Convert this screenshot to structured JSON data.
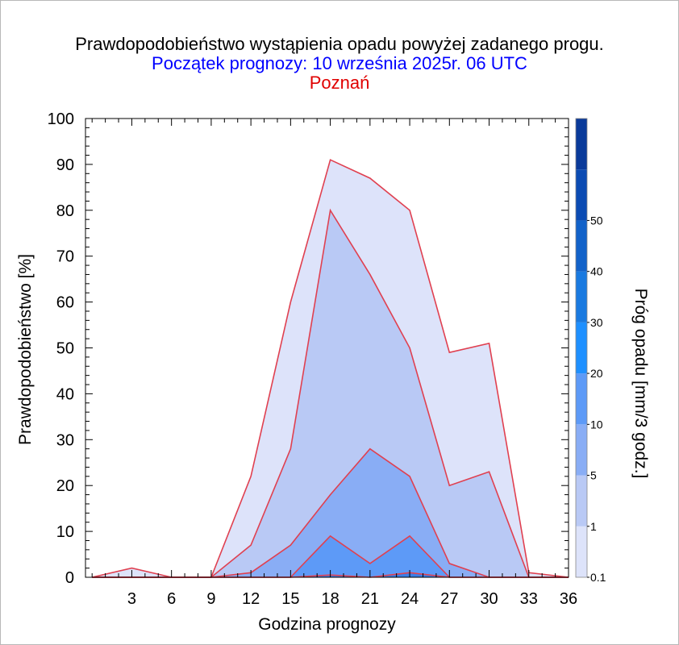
{
  "title": "Prawdopodobieństwo wystąpienia opadu powyżej zadanego progu.",
  "subtitle": "Początek prognozy: 10 września 2025r. 06 UTC",
  "location": "Poznań",
  "colors": {
    "title": "#000000",
    "subtitle": "#0000ff",
    "location": "#e00000",
    "series_line": "#e04050",
    "axis": "#000000"
  },
  "chart_data": {
    "type": "area",
    "xlabel": "Godzina prognozy",
    "ylabel": "Prawdopodobieństwo [%]",
    "xlim": [
      -0.5,
      36
    ],
    "ylim": [
      0,
      100
    ],
    "x_ticks": [
      3,
      6,
      9,
      12,
      15,
      18,
      21,
      24,
      27,
      30,
      33,
      36
    ],
    "y_ticks": [
      0,
      10,
      20,
      30,
      40,
      50,
      60,
      70,
      80,
      90,
      100
    ],
    "x": [
      0,
      3,
      6,
      9,
      12,
      15,
      18,
      21,
      24,
      27,
      30,
      33,
      36
    ],
    "series": [
      {
        "name": "0.1",
        "color": "#dde3fa",
        "values": [
          0,
          2,
          0,
          0,
          22,
          60,
          91,
          87,
          80,
          49,
          51,
          1,
          0
        ]
      },
      {
        "name": "1",
        "color": "#b9c9f5",
        "values": [
          0,
          0,
          0,
          0,
          7,
          28,
          80,
          66,
          50,
          20,
          23,
          0,
          0
        ]
      },
      {
        "name": "5",
        "color": "#89adf5",
        "values": [
          0,
          0,
          0,
          0,
          1,
          7,
          18,
          28,
          22,
          3,
          0,
          0,
          0
        ]
      },
      {
        "name": "10",
        "color": "#5d9af7",
        "values": [
          0,
          0,
          0,
          0,
          0,
          0,
          9,
          3,
          9,
          0,
          0,
          0,
          0
        ]
      },
      {
        "name": "20",
        "color": "#3a7fe8",
        "values": [
          0,
          0,
          0,
          0,
          0,
          0,
          0.5,
          0,
          1,
          0,
          0,
          0,
          0
        ]
      }
    ],
    "colorbar": {
      "label": "Próg opadu [mm/3 godz.]",
      "tick_labels": [
        "0.1",
        "1",
        "5",
        "10",
        "20",
        "30",
        "40",
        "50"
      ],
      "colors": [
        "#dde3fa",
        "#b9c9f5",
        "#89adf5",
        "#5d9af7",
        "#1e90ff",
        "#1a7ae0",
        "#1262c9",
        "#0b4bb3",
        "#0a3a9a"
      ]
    }
  }
}
